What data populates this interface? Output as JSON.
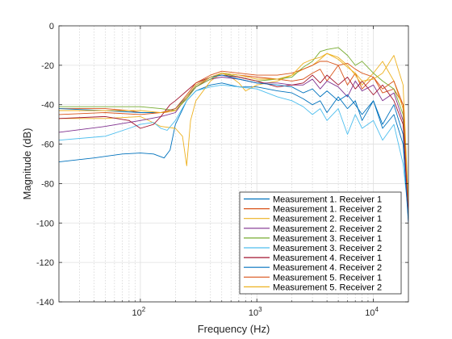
{
  "chart_data": {
    "type": "line",
    "xlabel": "Frequency (Hz)",
    "ylabel": "Magnitude (dB)",
    "xscale": "log",
    "xlim": [
      20,
      20000
    ],
    "ylim": [
      -140,
      0
    ],
    "grid": true,
    "minor_grid_x": true,
    "legend_placement": "bottom-right",
    "x_ticks": [
      {
        "value": 100,
        "base": "10",
        "exp": "2"
      },
      {
        "value": 1000,
        "base": "10",
        "exp": "3"
      },
      {
        "value": 10000,
        "base": "10",
        "exp": "4"
      }
    ],
    "y_ticks": [
      {
        "value": 0,
        "label": "0"
      },
      {
        "value": -20,
        "label": "-20"
      },
      {
        "value": -40,
        "label": "-40"
      },
      {
        "value": -60,
        "label": "-60"
      },
      {
        "value": -80,
        "label": "-80"
      },
      {
        "value": -100,
        "label": "-100"
      },
      {
        "value": -120,
        "label": "-120"
      },
      {
        "value": -140,
        "label": "-140"
      }
    ],
    "series": [
      {
        "name": "Measurement 1. Receiver 1",
        "color": "#0072BD",
        "x": [
          20,
          40,
          70,
          100,
          130,
          160,
          180,
          200,
          250,
          300,
          400,
          500,
          700,
          1000,
          1500,
          2000,
          2500,
          3000,
          3500,
          4000,
          5000,
          6000,
          7000,
          8000,
          10000,
          12000,
          15000,
          18000,
          20000
        ],
        "y": [
          -69,
          -67,
          -65,
          -64.5,
          -65,
          -67,
          -63,
          -50,
          -38,
          -33,
          -30,
          -29,
          -31,
          -31,
          -33,
          -34,
          -37,
          -40,
          -38,
          -44,
          -36,
          -42,
          -38,
          -48,
          -38,
          -50,
          -40,
          -55,
          -95
        ]
      },
      {
        "name": "Measurement 1. Receiver 2",
        "color": "#D95319",
        "x": [
          20,
          50,
          80,
          100,
          130,
          160,
          200,
          250,
          300,
          400,
          500,
          700,
          1000,
          1500,
          2000,
          2500,
          3000,
          3500,
          4000,
          5000,
          6000,
          7000,
          8000,
          10000,
          12000,
          15000,
          18000,
          20000
        ],
        "y": [
          -42,
          -42,
          -43,
          -44,
          -44,
          -44,
          -43,
          -37,
          -31,
          -26,
          -24,
          -25,
          -26,
          -27,
          -28,
          -27,
          -24,
          -22,
          -28,
          -20,
          -30,
          -24,
          -32,
          -26,
          -34,
          -32,
          -40,
          -90
        ]
      },
      {
        "name": "Measurement 2. Receiver 1",
        "color": "#EDB120",
        "x": [
          20,
          50,
          100,
          150,
          200,
          230,
          250,
          270,
          300,
          400,
          500,
          600,
          700,
          800,
          1000,
          1500,
          2000,
          2500,
          3000,
          3500,
          4000,
          5000,
          6000,
          7000,
          8000,
          10000,
          12000,
          15000,
          18000,
          20000
        ],
        "y": [
          -47,
          -47,
          -46,
          -51,
          -52,
          -56,
          -71,
          -48,
          -38,
          -28,
          -24,
          -26,
          -29,
          -33,
          -30,
          -28,
          -25,
          -22,
          -20,
          -17,
          -14,
          -16,
          -20,
          -25,
          -30,
          -24,
          -18,
          -28,
          -42,
          -90
        ]
      },
      {
        "name": "Measurement 2. Receiver 2",
        "color": "#7E2F8E",
        "x": [
          20,
          50,
          100,
          150,
          200,
          250,
          300,
          400,
          500,
          700,
          1000,
          1500,
          2000,
          2500,
          3000,
          3500,
          4000,
          5000,
          6000,
          7000,
          8000,
          10000,
          12000,
          15000,
          18000,
          20000
        ],
        "y": [
          -54,
          -51,
          -48,
          -46,
          -44,
          -36,
          -31,
          -27,
          -26,
          -27,
          -29,
          -29,
          -30,
          -30,
          -27,
          -32,
          -28,
          -31,
          -36,
          -28,
          -33,
          -30,
          -38,
          -34,
          -48,
          -100
        ]
      },
      {
        "name": "Measurement 3. Receiver 1",
        "color": "#77AC30",
        "x": [
          20,
          50,
          100,
          150,
          200,
          250,
          300,
          400,
          500,
          700,
          1000,
          1500,
          2000,
          2500,
          3000,
          3500,
          4000,
          5000,
          6000,
          7000,
          8000,
          10000,
          12000,
          15000,
          18000,
          20000
        ],
        "y": [
          -41,
          -41,
          -41,
          -42,
          -43,
          -37,
          -31,
          -27,
          -24,
          -26,
          -28,
          -27,
          -26,
          -21,
          -18,
          -13,
          -12,
          -11,
          -15,
          -20,
          -18,
          -24,
          -28,
          -32,
          -45,
          -90
        ]
      },
      {
        "name": "Measurement 3. Receiver 2",
        "color": "#4DBEEE",
        "x": [
          20,
          50,
          80,
          100,
          130,
          150,
          170,
          200,
          250,
          300,
          400,
          500,
          700,
          1000,
          1500,
          2000,
          2500,
          3000,
          3500,
          4000,
          5000,
          6000,
          7000,
          8000,
          10000,
          12000,
          15000,
          18000,
          20000
        ],
        "y": [
          -58,
          -56,
          -52,
          -50,
          -49,
          -52,
          -53,
          -48,
          -38,
          -33,
          -31,
          -30,
          -31,
          -32,
          -36,
          -38,
          -41,
          -45,
          -42,
          -48,
          -42,
          -55,
          -45,
          -52,
          -48,
          -58,
          -50,
          -70,
          -95
        ]
      },
      {
        "name": "Measurement 4. Receiver 1",
        "color": "#A2142F",
        "x": [
          20,
          50,
          80,
          100,
          130,
          150,
          180,
          200,
          250,
          300,
          400,
          500,
          700,
          1000,
          1500,
          2000,
          2500,
          3000,
          3500,
          4000,
          5000,
          6000,
          7000,
          8000,
          10000,
          12000,
          15000,
          18000,
          20000
        ],
        "y": [
          -47,
          -46,
          -48,
          -52,
          -50,
          -46,
          -40,
          -38,
          -33,
          -29,
          -26,
          -25,
          -26,
          -28,
          -31,
          -30,
          -29,
          -25,
          -29,
          -25,
          -30,
          -26,
          -32,
          -28,
          -35,
          -30,
          -38,
          -50,
          -95
        ]
      },
      {
        "name": "Measurement 4. Receiver 2",
        "color": "#0072BD",
        "x": [
          20,
          50,
          100,
          150,
          200,
          250,
          300,
          400,
          500,
          700,
          1000,
          1500,
          2000,
          2500,
          3000,
          3500,
          4000,
          5000,
          6000,
          7000,
          8000,
          10000,
          12000,
          15000,
          18000,
          20000
        ],
        "y": [
          -42,
          -43,
          -44,
          -44,
          -42,
          -36,
          -30,
          -26,
          -25,
          -27,
          -29,
          -30,
          -31,
          -34,
          -32,
          -36,
          -33,
          -38,
          -35,
          -40,
          -45,
          -38,
          -52,
          -45,
          -60,
          -100
        ]
      },
      {
        "name": "Measurement 5. Receiver 1",
        "color": "#D95319",
        "x": [
          20,
          50,
          100,
          150,
          200,
          250,
          300,
          400,
          500,
          700,
          1000,
          1500,
          2000,
          2500,
          3000,
          3500,
          4000,
          5000,
          6000,
          7000,
          8000,
          10000,
          12000,
          15000,
          18000,
          20000
        ],
        "y": [
          -45,
          -44,
          -45,
          -44,
          -42,
          -35,
          -29,
          -25,
          -23,
          -24,
          -25,
          -25,
          -24,
          -22,
          -20,
          -18,
          -18,
          -20,
          -19,
          -22,
          -24,
          -26,
          -32,
          -28,
          -40,
          -90
        ]
      },
      {
        "name": "Measurement 5. Receiver 2",
        "color": "#EDB120",
        "x": [
          20,
          50,
          100,
          150,
          200,
          250,
          300,
          400,
          500,
          700,
          1000,
          1500,
          2000,
          2500,
          3000,
          3500,
          4000,
          5000,
          6000,
          7000,
          8000,
          10000,
          12000,
          15000,
          18000,
          20000
        ],
        "y": [
          -43,
          -43,
          -43,
          -44,
          -43,
          -36,
          -30,
          -26,
          -24,
          -25,
          -27,
          -27,
          -25,
          -19,
          -17,
          -16,
          -14,
          -17,
          -21,
          -24,
          -28,
          -27,
          -24,
          -15,
          -30,
          -90
        ]
      }
    ]
  }
}
